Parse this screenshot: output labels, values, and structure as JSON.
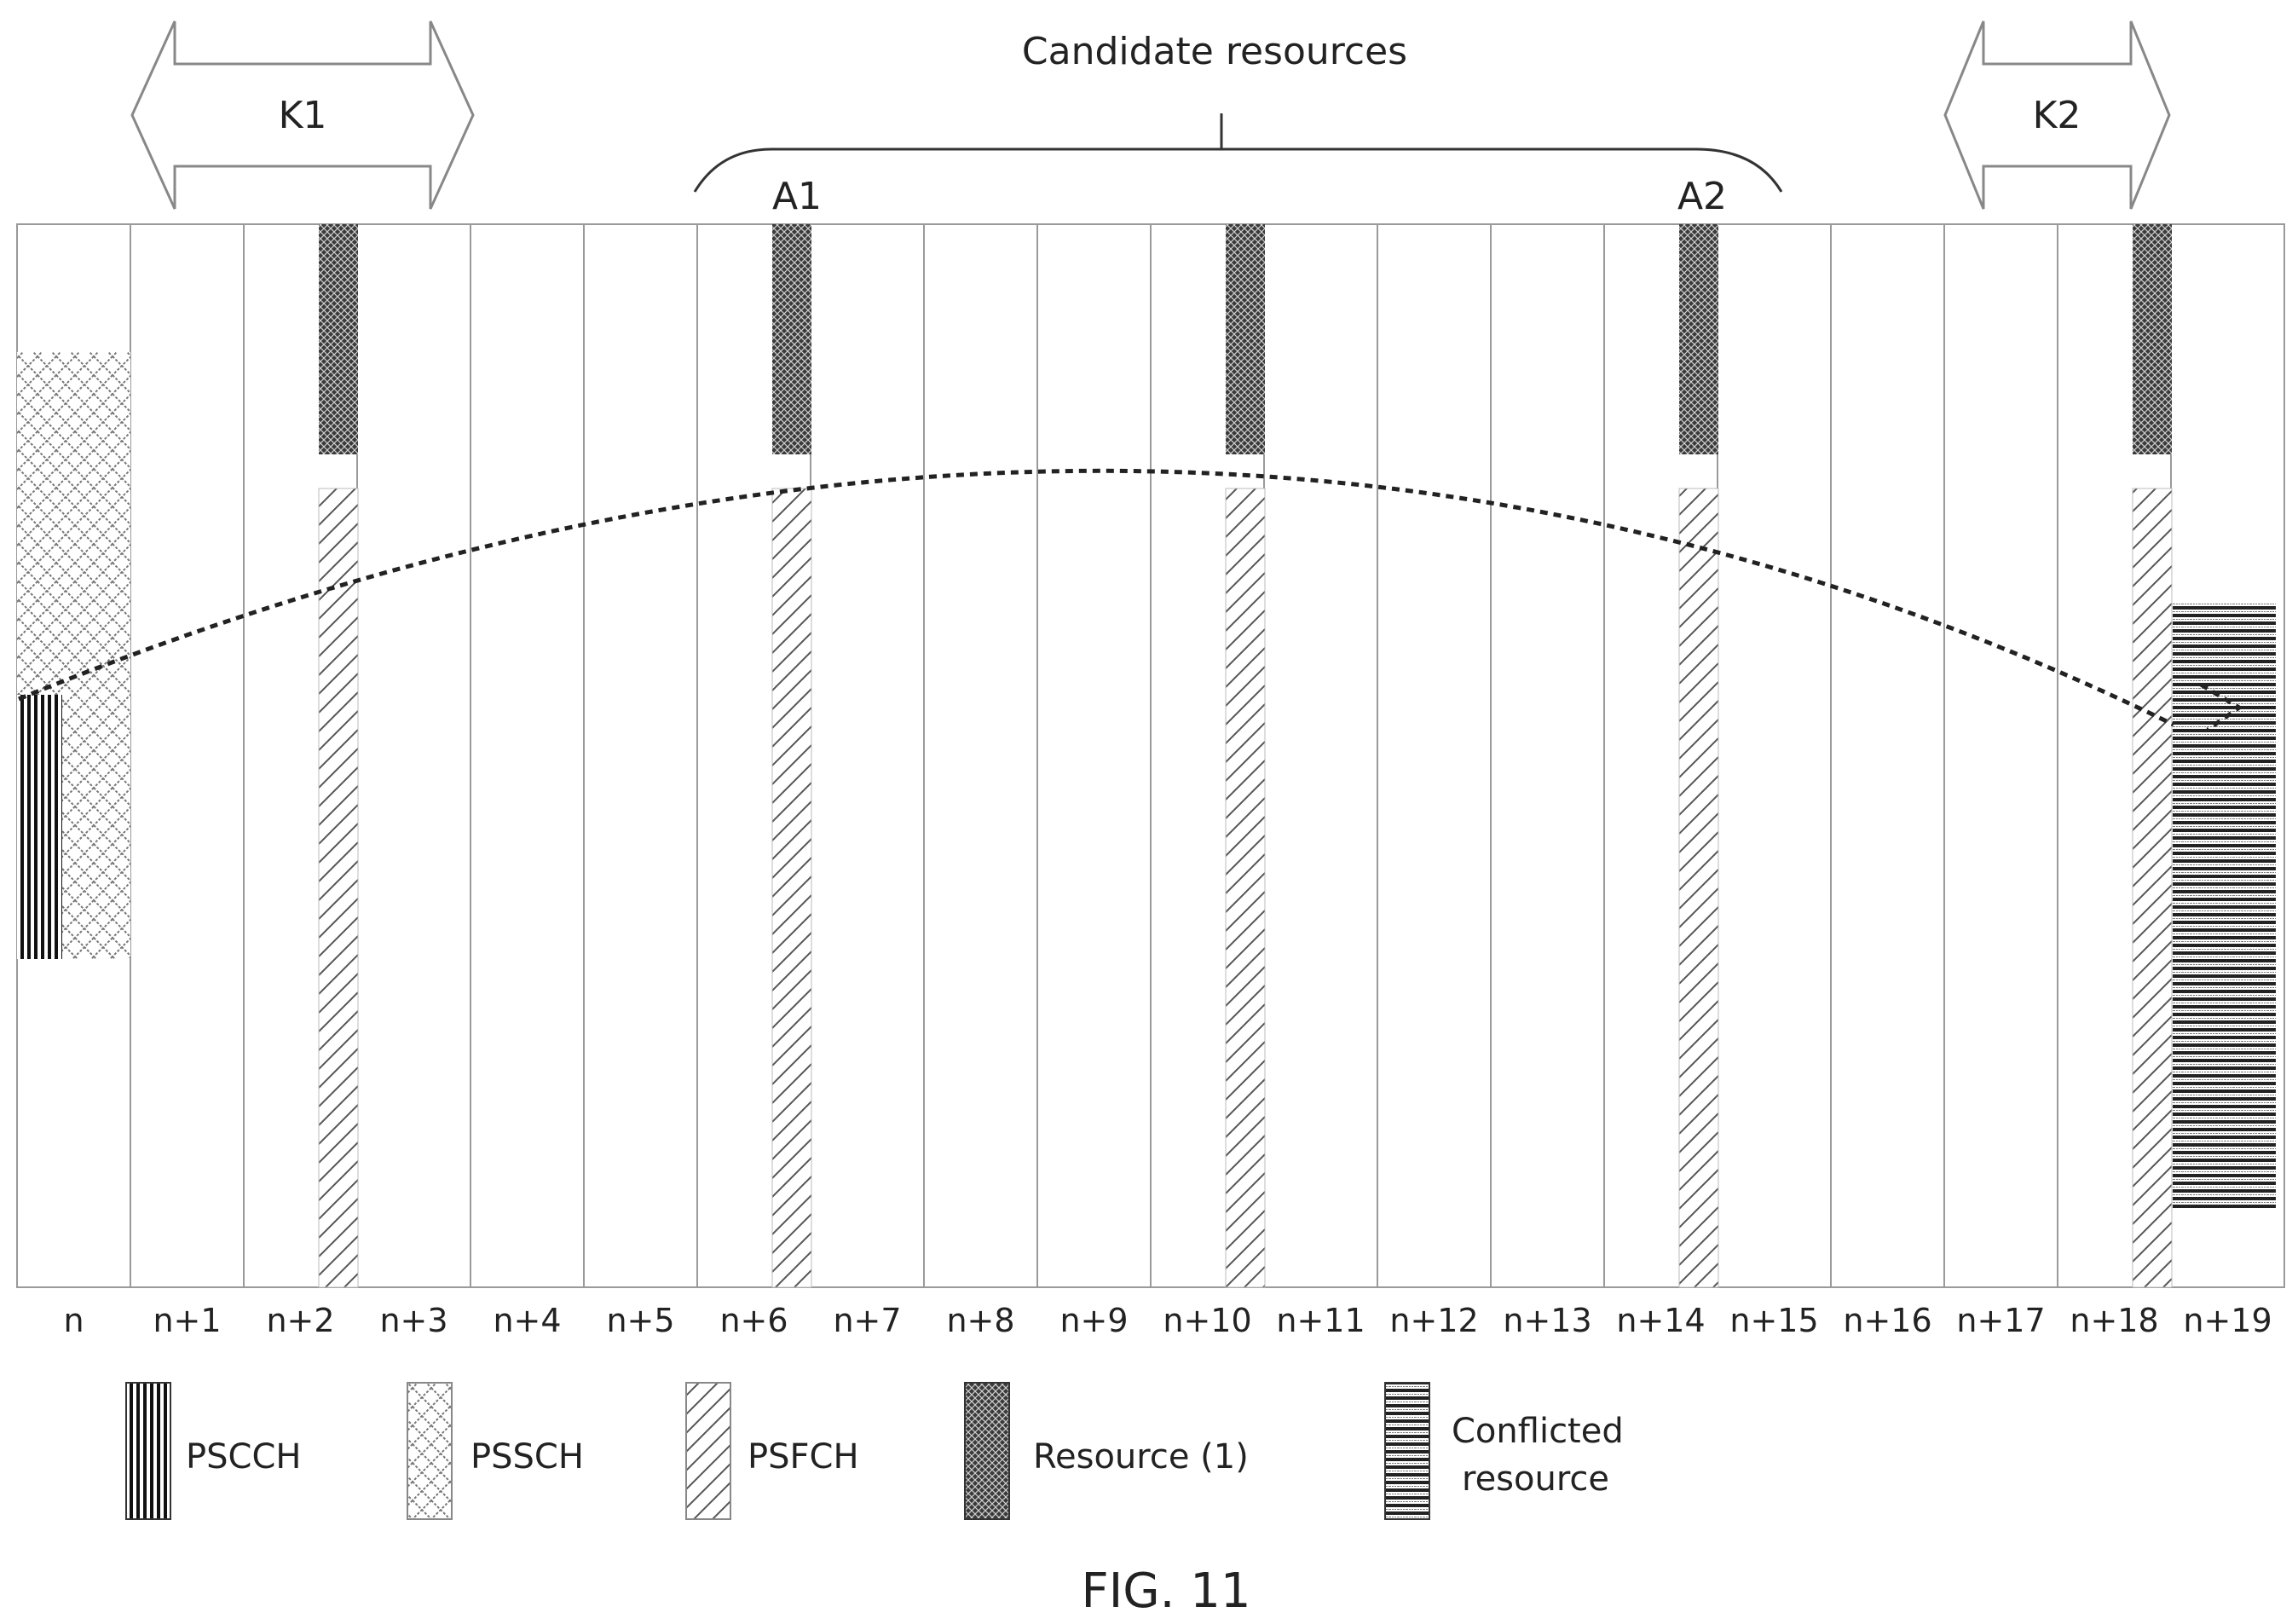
{
  "candidate_label": "Candidate resources",
  "k1_label": "K1",
  "k2_label": "K2",
  "a1_label": "A1",
  "a2_label": "A2",
  "slots": [
    "n",
    "n+1",
    "n+2",
    "n+3",
    "n+4",
    "n+5",
    "n+6",
    "n+7",
    "n+8",
    "n+9",
    "n+10",
    "n+11",
    "n+12",
    "n+13",
    "n+14",
    "n+15",
    "n+16",
    "n+17",
    "n+18",
    "n+19"
  ],
  "legend": {
    "pscch": "PSCCH",
    "pssch": "PSSCH",
    "psfch": "PSFCH",
    "resource": "Resource (1)",
    "conflicted_line1": "Conflicted",
    "conflicted_line2": "resource"
  },
  "figure_label": "FIG. 11"
}
